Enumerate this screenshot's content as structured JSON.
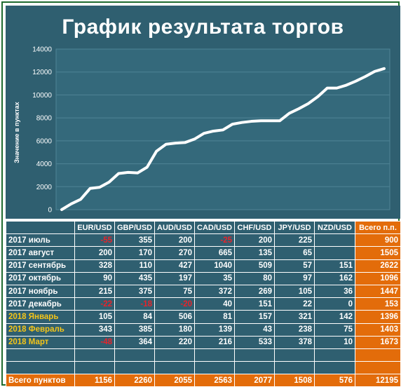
{
  "chart_data": {
    "type": "line",
    "title": "График результата торгов",
    "ylabel": "Значение в пунктах",
    "ylim": [
      0,
      14000
    ],
    "yticks": [
      0,
      2000,
      4000,
      6000,
      8000,
      10000,
      12000,
      14000
    ],
    "series": [
      {
        "values": [
          0,
          500,
          900,
          1850,
          1950,
          2400,
          3150,
          3250,
          3200,
          3700,
          5100,
          5700,
          5800,
          5850,
          6150,
          6650,
          6850,
          6950,
          7450,
          7600,
          7700,
          7750,
          7750,
          7750,
          8400,
          8800,
          9250,
          9850,
          10600,
          10600,
          10850,
          11200,
          11600,
          12050,
          12300
        ]
      }
    ],
    "line_color": "#ffffff",
    "background": "#2f5f70",
    "grid": true
  },
  "table": {
    "headers": [
      "",
      "EUR/USD",
      "GBP/USD",
      "AUD/USD",
      "CAD/USD",
      "CHF/USD",
      "JPY/USD",
      "NZD/USD",
      "Всего п.п."
    ],
    "rows": [
      {
        "label": "2017 июль",
        "cells": [
          "-55",
          "355",
          "200",
          "-25",
          "200",
          "225",
          "",
          "900"
        ]
      },
      {
        "label": "2017 август",
        "cells": [
          "200",
          "170",
          "270",
          "665",
          "135",
          "65",
          "",
          "1505"
        ]
      },
      {
        "label": "2017 сентябрь",
        "cells": [
          "328",
          "110",
          "427",
          "1040",
          "509",
          "57",
          "151",
          "2622"
        ]
      },
      {
        "label": "2017 октябрь",
        "cells": [
          "90",
          "435",
          "197",
          "35",
          "80",
          "97",
          "162",
          "1096"
        ]
      },
      {
        "label": "2017 ноябрь",
        "cells": [
          "215",
          "375",
          "75",
          "372",
          "269",
          "105",
          "36",
          "1447"
        ]
      },
      {
        "label": "2017 декабрь",
        "cells": [
          "-22",
          "-18",
          "-20",
          "40",
          "151",
          "22",
          "0",
          "153"
        ]
      },
      {
        "label": "2018 Январь",
        "cells": [
          "105",
          "84",
          "506",
          "81",
          "157",
          "321",
          "142",
          "1396"
        ]
      },
      {
        "label": "2018 Февраль",
        "cells": [
          "343",
          "385",
          "180",
          "139",
          "43",
          "238",
          "75",
          "1403"
        ]
      },
      {
        "label": "2018 Март",
        "cells": [
          "-48",
          "364",
          "220",
          "216",
          "533",
          "378",
          "10",
          "1673"
        ]
      }
    ],
    "total": {
      "label": "Всего пунктов",
      "cells": [
        "1156",
        "2260",
        "2055",
        "2563",
        "2077",
        "1508",
        "576",
        "12195"
      ]
    },
    "colors": {
      "negative": "#e8232a",
      "highlight_label": "#f5c518",
      "total_bg": "#e36c0a"
    }
  }
}
